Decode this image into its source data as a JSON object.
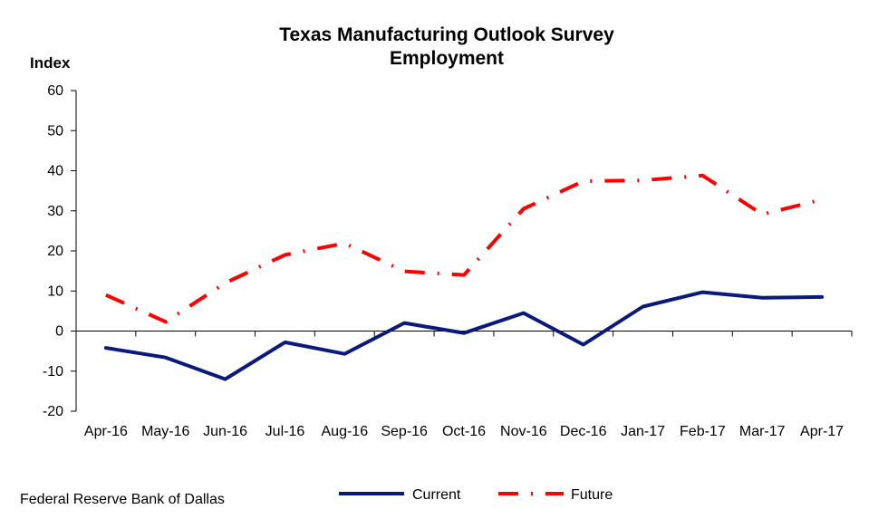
{
  "chart_data": {
    "type": "line",
    "title": "Texas Manufacturing Outlook Survey",
    "subtitle": "Employment",
    "ylabel": "Index",
    "xlabel": "",
    "ylim": [
      -20,
      60
    ],
    "yticks": [
      -20,
      -10,
      0,
      10,
      20,
      30,
      40,
      50,
      60
    ],
    "categories": [
      "Apr-16",
      "May-16",
      "Jun-16",
      "Jul-16",
      "Aug-16",
      "Sep-16",
      "Oct-16",
      "Nov-16",
      "Dec-16",
      "Jan-17",
      "Feb-17",
      "Mar-17",
      "Apr-17"
    ],
    "series": [
      {
        "name": "Current",
        "color": "#0a1a7a",
        "style": "solid",
        "values": [
          -4.2,
          -6.6,
          -12.0,
          -2.8,
          -5.7,
          2.0,
          -0.5,
          4.5,
          -3.4,
          6.1,
          9.7,
          8.3,
          8.5
        ]
      },
      {
        "name": "Future",
        "color": "#ff0000",
        "style": "dash-dot",
        "values": [
          9.0,
          2.3,
          12.0,
          19.0,
          21.9,
          14.9,
          14.0,
          30.5,
          37.4,
          37.6,
          38.8,
          29.1,
          32.8
        ]
      }
    ],
    "grid": false,
    "legend": "bottom"
  },
  "source": "Federal Reserve Bank of Dallas"
}
